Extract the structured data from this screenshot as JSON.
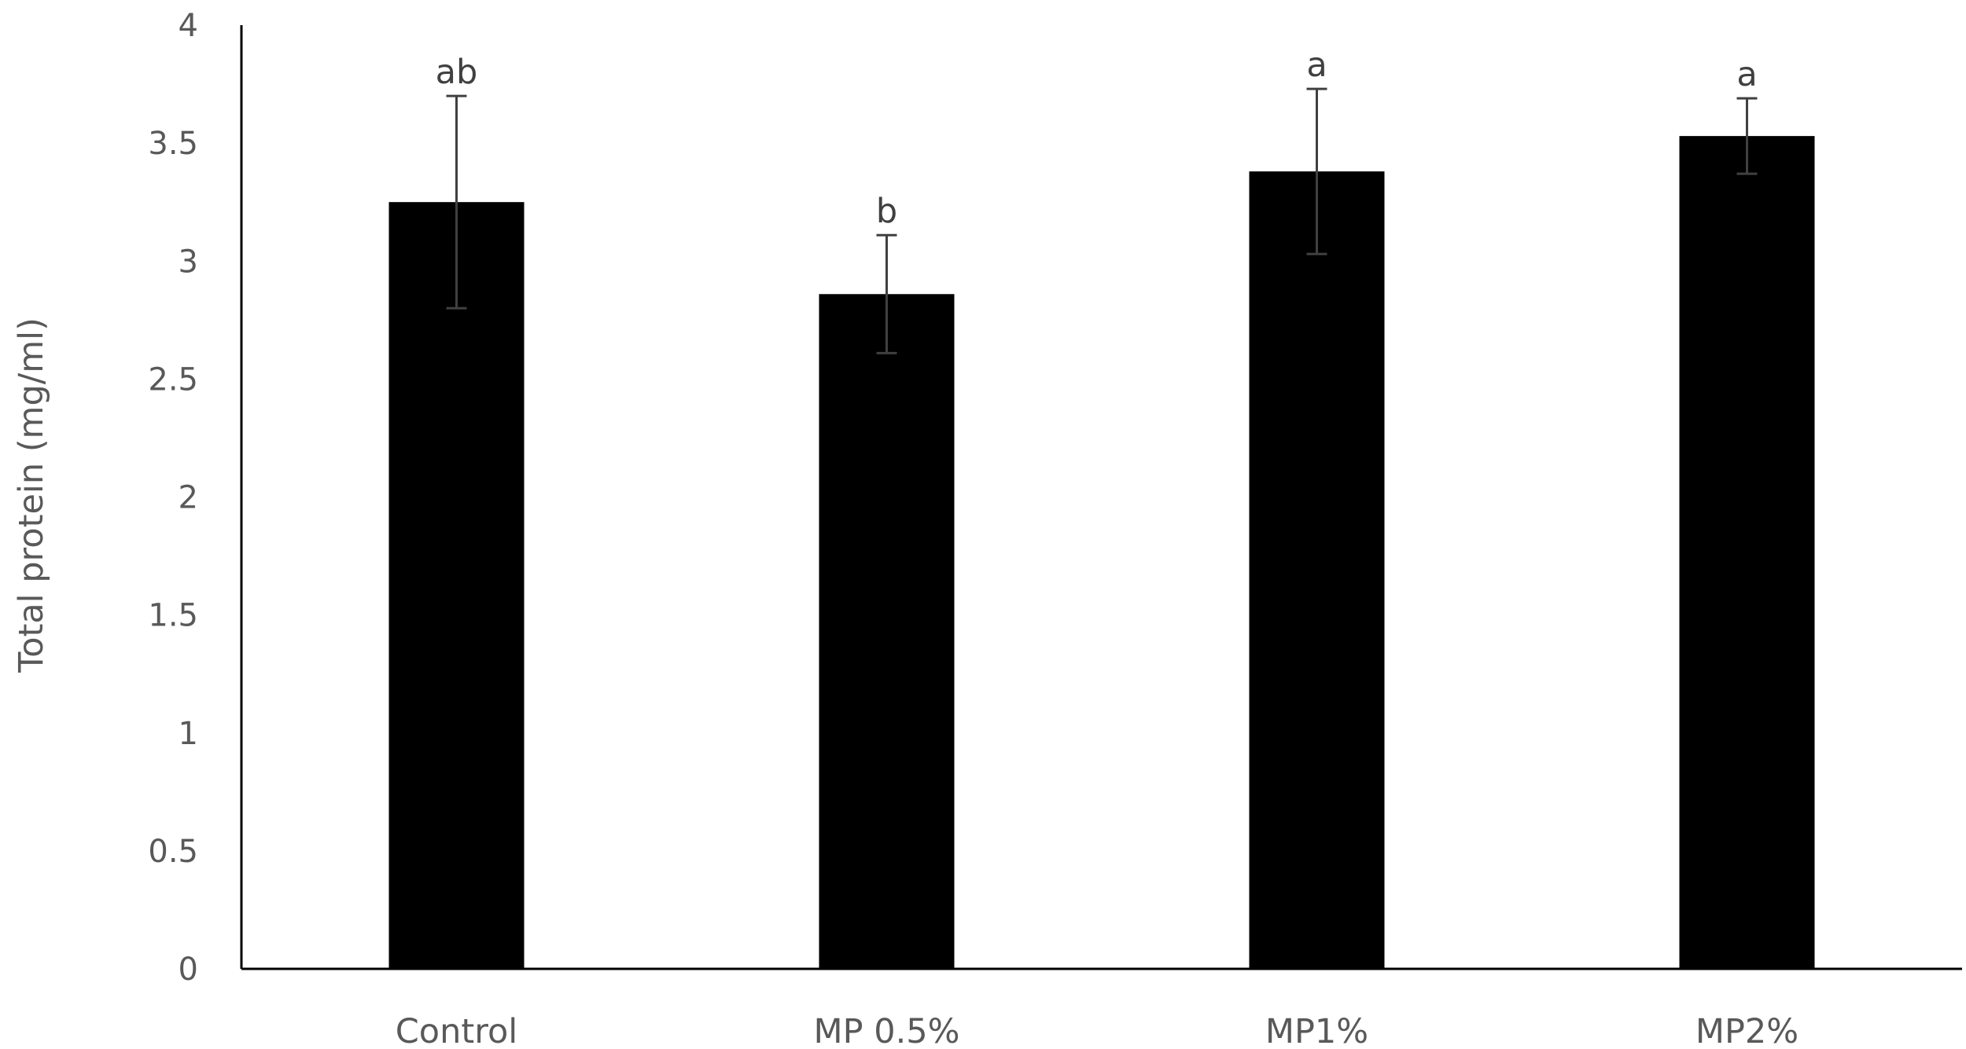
{
  "chart_data": {
    "type": "bar",
    "title": "",
    "xlabel": "",
    "ylabel": "Total protein (mg/ml)",
    "categories": [
      "Control",
      "MP 0.5%",
      "MP1%",
      "MP2%"
    ],
    "series": [
      {
        "values": [
          3.25,
          2.86,
          3.38,
          3.53
        ],
        "error": [
          0.45,
          0.25,
          0.35,
          0.16
        ],
        "annotations": [
          "ab",
          "b",
          "a",
          "a"
        ]
      }
    ],
    "ylim": [
      0,
      4
    ],
    "yticks": [
      "0",
      "0.5",
      "1",
      "1.5",
      "2",
      "2.5",
      "3",
      "3.5",
      "4"
    ],
    "grid": false,
    "legend": "none",
    "colors": {
      "bar": "#000000",
      "error_bar": "#404040",
      "axis": "#000000",
      "text": "#595959"
    }
  }
}
